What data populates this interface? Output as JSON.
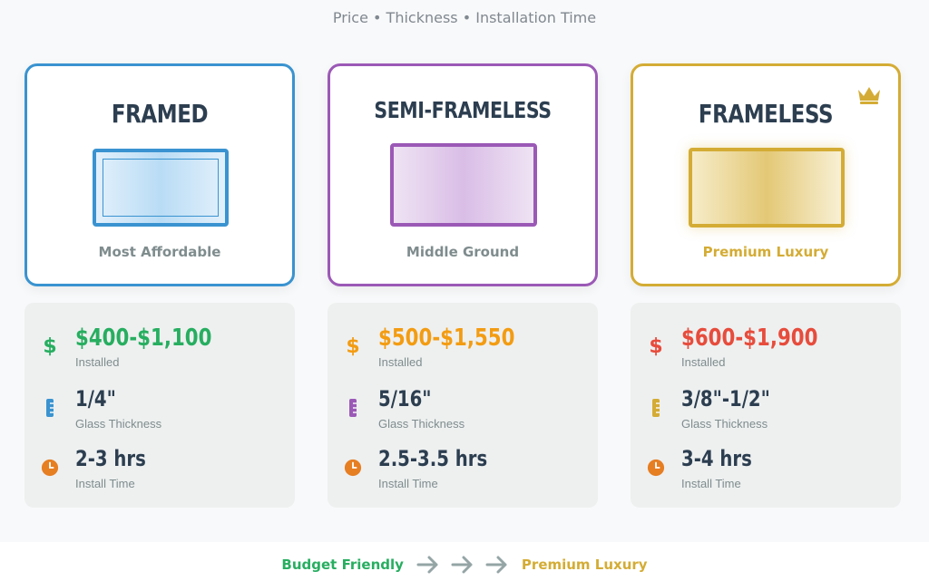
{
  "header": {
    "subtitle": "Price • Thickness • Installation Time"
  },
  "options": [
    {
      "title": "FRAMED",
      "caption": "Most Affordable",
      "accent": "#3a93d0",
      "price": "$400-$1,100",
      "price_color": "#27ae60",
      "price_label": "Installed",
      "thickness": "1/4\"",
      "thickness_label": "Glass Thickness",
      "time": "2-3 hrs",
      "time_label": "Install Time",
      "icons": [
        "dollar-icon",
        "ruler-icon",
        "clock-icon"
      ]
    },
    {
      "title": "SEMI-FRAMELESS",
      "caption": "Middle Ground",
      "accent": "#9b59b6",
      "price": "$500-$1,550",
      "price_color": "#f39c12",
      "price_label": "Installed",
      "thickness": "5/16\"",
      "thickness_label": "Glass Thickness",
      "time": "2.5-3.5 hrs",
      "time_label": "Install Time",
      "icons": [
        "dollar-icon",
        "ruler-icon",
        "clock-icon"
      ]
    },
    {
      "title": "FRAMELESS",
      "caption": "Premium Luxury",
      "accent": "#d4ac35",
      "price": "$600-$1,900",
      "price_color": "#e74c3c",
      "price_label": "Installed",
      "thickness": "3/8\"-1/2\"",
      "thickness_label": "Glass Thickness",
      "time": "3-4 hrs",
      "time_label": "Install Time",
      "icons": [
        "crown-icon",
        "dollar-icon",
        "ruler-icon",
        "clock-icon"
      ]
    }
  ],
  "footer": {
    "left": "Budget Friendly",
    "right": "Premium Luxury",
    "left_color": "#27ae60",
    "right_color": "#d4ac35",
    "arrow_color": "#95a5a6"
  },
  "colors": {
    "clock": "#e67e22",
    "title": "#2c3e50",
    "muted": "#7f8c8d"
  }
}
